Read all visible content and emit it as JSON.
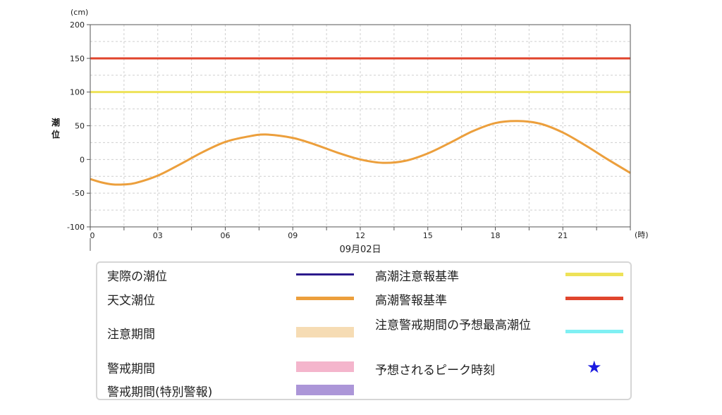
{
  "chart_data": {
    "type": "line",
    "yunit": "(cm)",
    "ylabel": "潮位",
    "xunit": "(時)",
    "date_label": "09月02日",
    "xlim": [
      0,
      24
    ],
    "ylim": [
      -100,
      200
    ],
    "xticks": [
      0,
      3,
      6,
      9,
      12,
      15,
      18,
      21
    ],
    "xtick_labels": [
      "0",
      "03",
      "06",
      "09",
      "12",
      "15",
      "18",
      "21"
    ],
    "yticks": [
      200,
      150,
      100,
      50,
      0,
      -50,
      -100
    ],
    "grid": true,
    "series": [
      {
        "name": "天文潮位",
        "color": "#ec9f3c",
        "x": [
          0,
          0.5,
          1,
          1.5,
          2,
          3,
          4,
          5,
          6,
          7,
          7.8,
          9,
          10,
          11,
          12,
          13,
          14,
          15,
          16,
          17,
          18,
          19,
          20,
          21,
          22,
          23,
          24
        ],
        "y": [
          -29,
          -34,
          -37,
          -37,
          -35,
          -24,
          -7,
          11,
          26,
          34,
          37,
          32,
          22,
          10,
          0,
          -5,
          -2,
          9,
          25,
          42,
          54,
          57,
          53,
          40,
          21,
          0,
          -20
        ]
      }
    ],
    "thresholds": [
      {
        "name": "高潮注意報基準",
        "value": 100,
        "color": "#eee258"
      },
      {
        "name": "高潮警報基準",
        "value": 150,
        "color": "#e0452d"
      }
    ]
  },
  "legend": {
    "left": [
      {
        "label": "実際の潮位",
        "swatch": "line",
        "color": "#2c1a8c"
      },
      {
        "label": "天文潮位",
        "swatch": "thick",
        "color": "#ec9f3c"
      },
      {
        "label": "注意期間",
        "swatch": "band",
        "color": "#f6dcb4"
      },
      {
        "label": "警戒期間",
        "swatch": "band",
        "color": "#f4b5cc"
      },
      {
        "label": "警戒期間(特別警報)",
        "swatch": "band",
        "color": "#ac96d8"
      }
    ],
    "right": [
      {
        "label": "高潮注意報基準",
        "swatch": "thick",
        "color": "#eee258"
      },
      {
        "label": "高潮警報基準",
        "swatch": "thick",
        "color": "#e0452d"
      },
      {
        "label": "注意警戒期間の予想最高潮位",
        "swatch": "thick",
        "color": "#7ff0f3"
      },
      {
        "label": "予想されるピーク時刻",
        "swatch": "star",
        "color": "#1a1ae0"
      }
    ]
  }
}
